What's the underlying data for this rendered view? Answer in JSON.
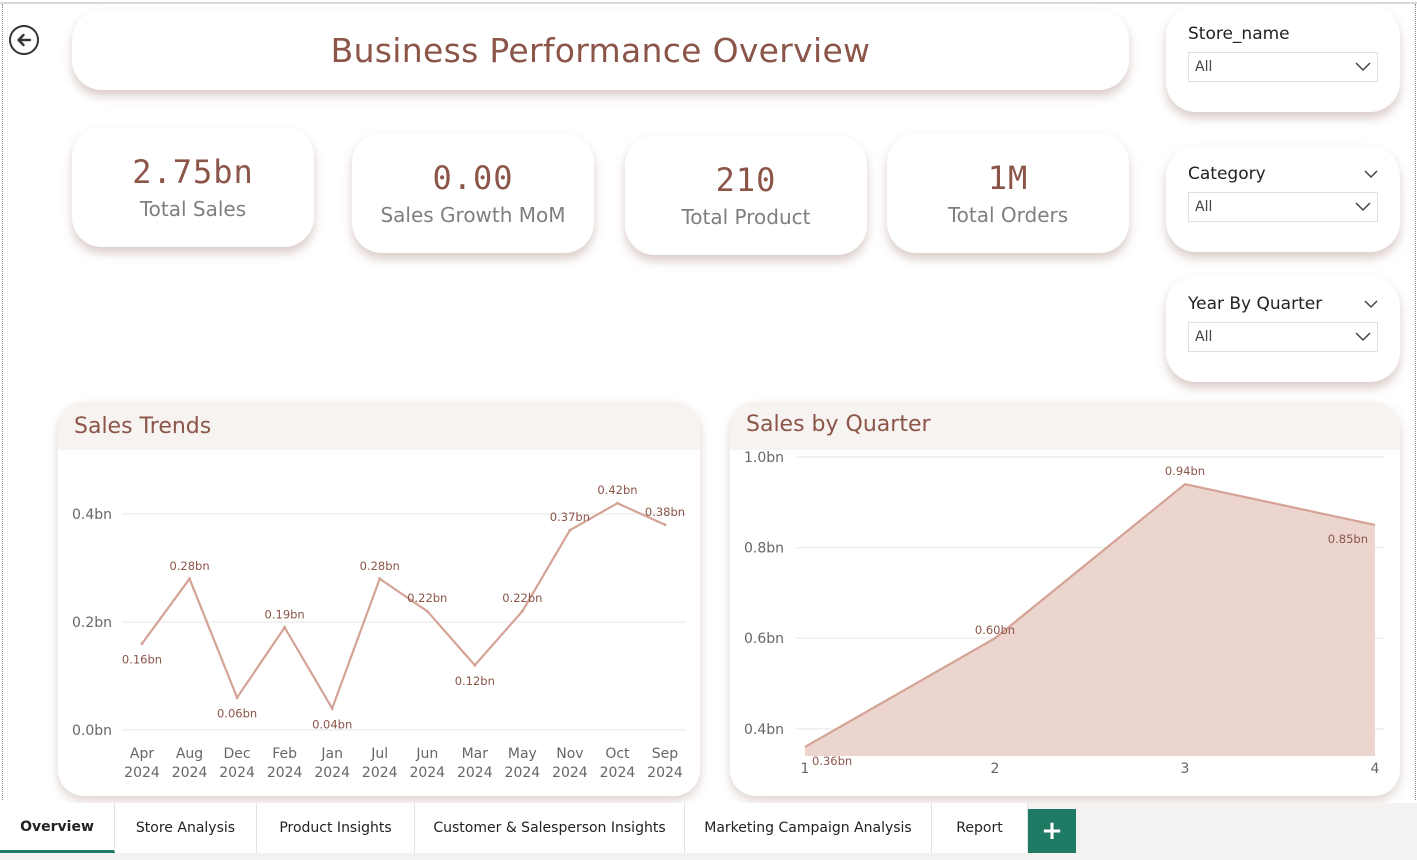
{
  "header": {
    "title": "Business Performance Overview"
  },
  "nav": {
    "back_icon": "arrow-left-circle-icon"
  },
  "kpis": [
    {
      "value": "2.75bn",
      "label": "Total Sales"
    },
    {
      "value": "0.00",
      "label": "Sales Growth MoM"
    },
    {
      "value": "210",
      "label": "Total Product"
    },
    {
      "value": "1M",
      "label": "Total Orders"
    }
  ],
  "slicers": [
    {
      "label": "Store_name",
      "value": "All"
    },
    {
      "label": "Category",
      "value": "All"
    },
    {
      "label": "Year By Quarter",
      "value": "All"
    }
  ],
  "colors": {
    "accent": "#8b5549",
    "line": "#d4a396",
    "area": "#ecd5ce",
    "tab_active": "#1f7a63"
  },
  "chart_data": [
    {
      "type": "line",
      "title": "Sales Trends",
      "categories": [
        [
          "Apr",
          "2024"
        ],
        [
          "Aug",
          "2024"
        ],
        [
          "Dec",
          "2024"
        ],
        [
          "Feb",
          "2024"
        ],
        [
          "Jan",
          "2024"
        ],
        [
          "Jul",
          "2024"
        ],
        [
          "Jun",
          "2024"
        ],
        [
          "Mar",
          "2024"
        ],
        [
          "May",
          "2024"
        ],
        [
          "Nov",
          "2024"
        ],
        [
          "Oct",
          "2024"
        ],
        [
          "Sep",
          "2024"
        ]
      ],
      "values": [
        0.16,
        0.28,
        0.06,
        0.19,
        0.04,
        0.28,
        0.22,
        0.12,
        0.22,
        0.37,
        0.42,
        0.38
      ],
      "labels": [
        "0.16bn",
        "0.28bn",
        "0.06bn",
        "0.19bn",
        "0.04bn",
        "0.28bn",
        "0.22bn",
        "0.12bn",
        "0.22bn",
        "0.37bn",
        "0.42bn",
        "0.38bn"
      ],
      "y_ticks": [
        "0.0bn",
        "0.2bn",
        "0.4bn"
      ],
      "ylim": [
        0,
        0.4
      ],
      "grid": true
    },
    {
      "type": "area",
      "title": "Sales by Quarter",
      "x": [
        "1",
        "2",
        "3",
        "4"
      ],
      "values": [
        0.36,
        0.6,
        0.94,
        0.85
      ],
      "labels": [
        "0.36bn",
        "0.60bn",
        "0.94bn",
        "0.85bn"
      ],
      "y_ticks": [
        "0.4bn",
        "0.6bn",
        "0.8bn",
        "1.0bn"
      ],
      "ylim": [
        0.4,
        1.0
      ],
      "grid": true
    }
  ],
  "tabs": [
    {
      "label": "Overview",
      "active": true
    },
    {
      "label": "Store Analysis"
    },
    {
      "label": "Product Insights"
    },
    {
      "label": "Customer & Salesperson Insights"
    },
    {
      "label": "Marketing Campaign Analysis"
    },
    {
      "label": "Report"
    }
  ],
  "add_tab_icon": "plus-icon"
}
